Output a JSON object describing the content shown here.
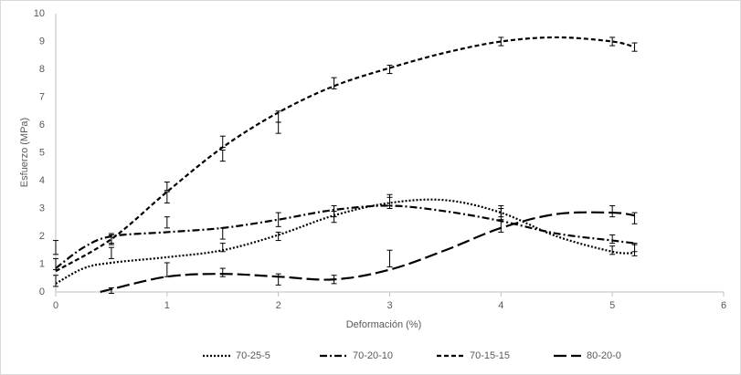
{
  "chart_data": {
    "type": "errorbar-line",
    "xlabel": "Deformación (%)",
    "ylabel": "Esfuerzo (MPa)",
    "xlim": [
      0,
      6
    ],
    "xticks": [
      0,
      1,
      2,
      3,
      4,
      5,
      6
    ],
    "ylim": [
      0,
      10
    ],
    "yticks": [
      0,
      1,
      2,
      3,
      4,
      5,
      6,
      7,
      8,
      9,
      10
    ],
    "grid": false,
    "legend": "bottom",
    "series": [
      {
        "name": "70-25-5",
        "color": "#000000",
        "dash": "dotted",
        "x": [
          0,
          0.5,
          1.5,
          2,
          2.5,
          3,
          4,
          5,
          5.2
        ],
        "values": [
          0.4,
          1.4,
          1.6,
          2.0,
          2.7,
          3.3,
          2.8,
          1.5,
          1.5
        ],
        "errors": [
          0.2,
          0.2,
          0.15,
          0.15,
          0.2,
          0.2,
          0.2,
          0.15,
          0.2
        ],
        "trend": {
          "x": [
            0,
            0.25,
            0.5,
            1,
            1.5,
            2,
            2.5,
            3,
            3.5,
            4,
            4.5,
            5,
            5.2
          ],
          "values": [
            0.3,
            0.85,
            1.05,
            1.25,
            1.5,
            2.05,
            2.75,
            3.2,
            3.3,
            2.85,
            2.0,
            1.45,
            1.4
          ]
        }
      },
      {
        "name": "70-20-10",
        "color": "#000000",
        "dash": "dashdot",
        "x": [
          0,
          0.5,
          1,
          1.5,
          2,
          2.5,
          3,
          4,
          5,
          5.2
        ],
        "values": [
          1.6,
          1.9,
          2.5,
          2.1,
          2.6,
          2.9,
          3.2,
          2.9,
          1.9,
          1.6
        ],
        "errors": [
          0.25,
          0.2,
          0.2,
          0.2,
          0.25,
          0.2,
          0.2,
          0.2,
          0.15,
          0.15
        ],
        "trend": {
          "x": [
            0,
            0.25,
            0.5,
            1,
            1.5,
            2,
            2.5,
            3,
            3.5,
            4,
            4.5,
            5,
            5.2
          ],
          "values": [
            0.85,
            1.6,
            2.0,
            2.15,
            2.3,
            2.6,
            2.95,
            3.1,
            2.9,
            2.55,
            2.1,
            1.85,
            1.75
          ]
        }
      },
      {
        "name": "70-15-15",
        "color": "#000000",
        "dash": "short",
        "x": [
          0,
          0.5,
          1,
          1,
          1.5,
          1.5,
          2,
          2,
          2.5,
          3,
          4,
          5,
          5.2
        ],
        "values": [
          1.0,
          1.9,
          3.8,
          3.4,
          5.4,
          4.9,
          6.3,
          5.9,
          7.5,
          8.0,
          9.0,
          9.0,
          8.8
        ],
        "errors": [
          0.2,
          0.15,
          0.15,
          0.2,
          0.2,
          0.2,
          0.2,
          0.2,
          0.2,
          0.15,
          0.15,
          0.15,
          0.15
        ],
        "trend": {
          "x": [
            0,
            0.5,
            1,
            1.5,
            2,
            2.5,
            3,
            3.5,
            4,
            4.5,
            5,
            5.2
          ],
          "values": [
            0.75,
            1.9,
            3.6,
            5.2,
            6.45,
            7.4,
            8.05,
            8.6,
            9.0,
            9.15,
            9.0,
            8.8
          ]
        }
      },
      {
        "name": "80-20-0",
        "color": "#000000",
        "dash": "long",
        "x": [
          0.5,
          1,
          1.5,
          2,
          2.5,
          3,
          4,
          5,
          5.2
        ],
        "values": [
          0.05,
          0.8,
          0.7,
          0.45,
          0.45,
          1.2,
          2.35,
          2.9,
          2.65
        ],
        "errors": [
          0.1,
          0.25,
          0.15,
          0.2,
          0.15,
          0.3,
          0.2,
          0.2,
          0.2
        ],
        "trend": {
          "x": [
            0.4,
            0.5,
            1,
            1.5,
            2,
            2.5,
            3,
            3.5,
            4,
            4.5,
            5,
            5.2
          ],
          "values": [
            0,
            0.1,
            0.55,
            0.65,
            0.55,
            0.45,
            0.8,
            1.5,
            2.3,
            2.8,
            2.85,
            2.75
          ]
        }
      }
    ]
  }
}
